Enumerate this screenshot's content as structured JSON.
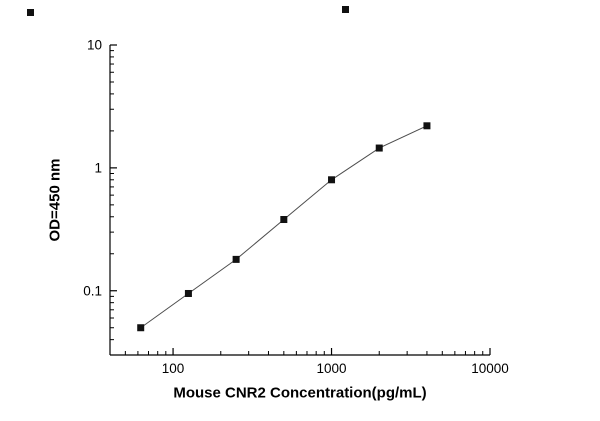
{
  "chart_data": {
    "type": "line",
    "title": "",
    "xlabel": "Mouse CNR2 Concentration(pg/mL)",
    "ylabel": "OD=450 nm",
    "x": [
      62.5,
      125,
      250,
      500,
      1000,
      2000,
      4000
    ],
    "y": [
      0.05,
      0.095,
      0.18,
      0.38,
      0.8,
      1.45,
      2.2
    ],
    "xscale": "log",
    "yscale": "log",
    "xlim": [
      40,
      10000
    ],
    "ylim": [
      0.03,
      10
    ],
    "x_major_ticks": [
      100,
      1000,
      10000
    ],
    "x_major_tick_labels": [
      "100",
      "1000",
      "10000"
    ],
    "y_major_ticks": [
      0.1,
      1,
      10
    ],
    "y_major_tick_labels": [
      "0.1",
      "1",
      "10"
    ],
    "marker": "square",
    "marker_color": "#111111",
    "line_color": "#4d4d4d",
    "axis_color": "#000000",
    "grid": false,
    "legend": null
  }
}
